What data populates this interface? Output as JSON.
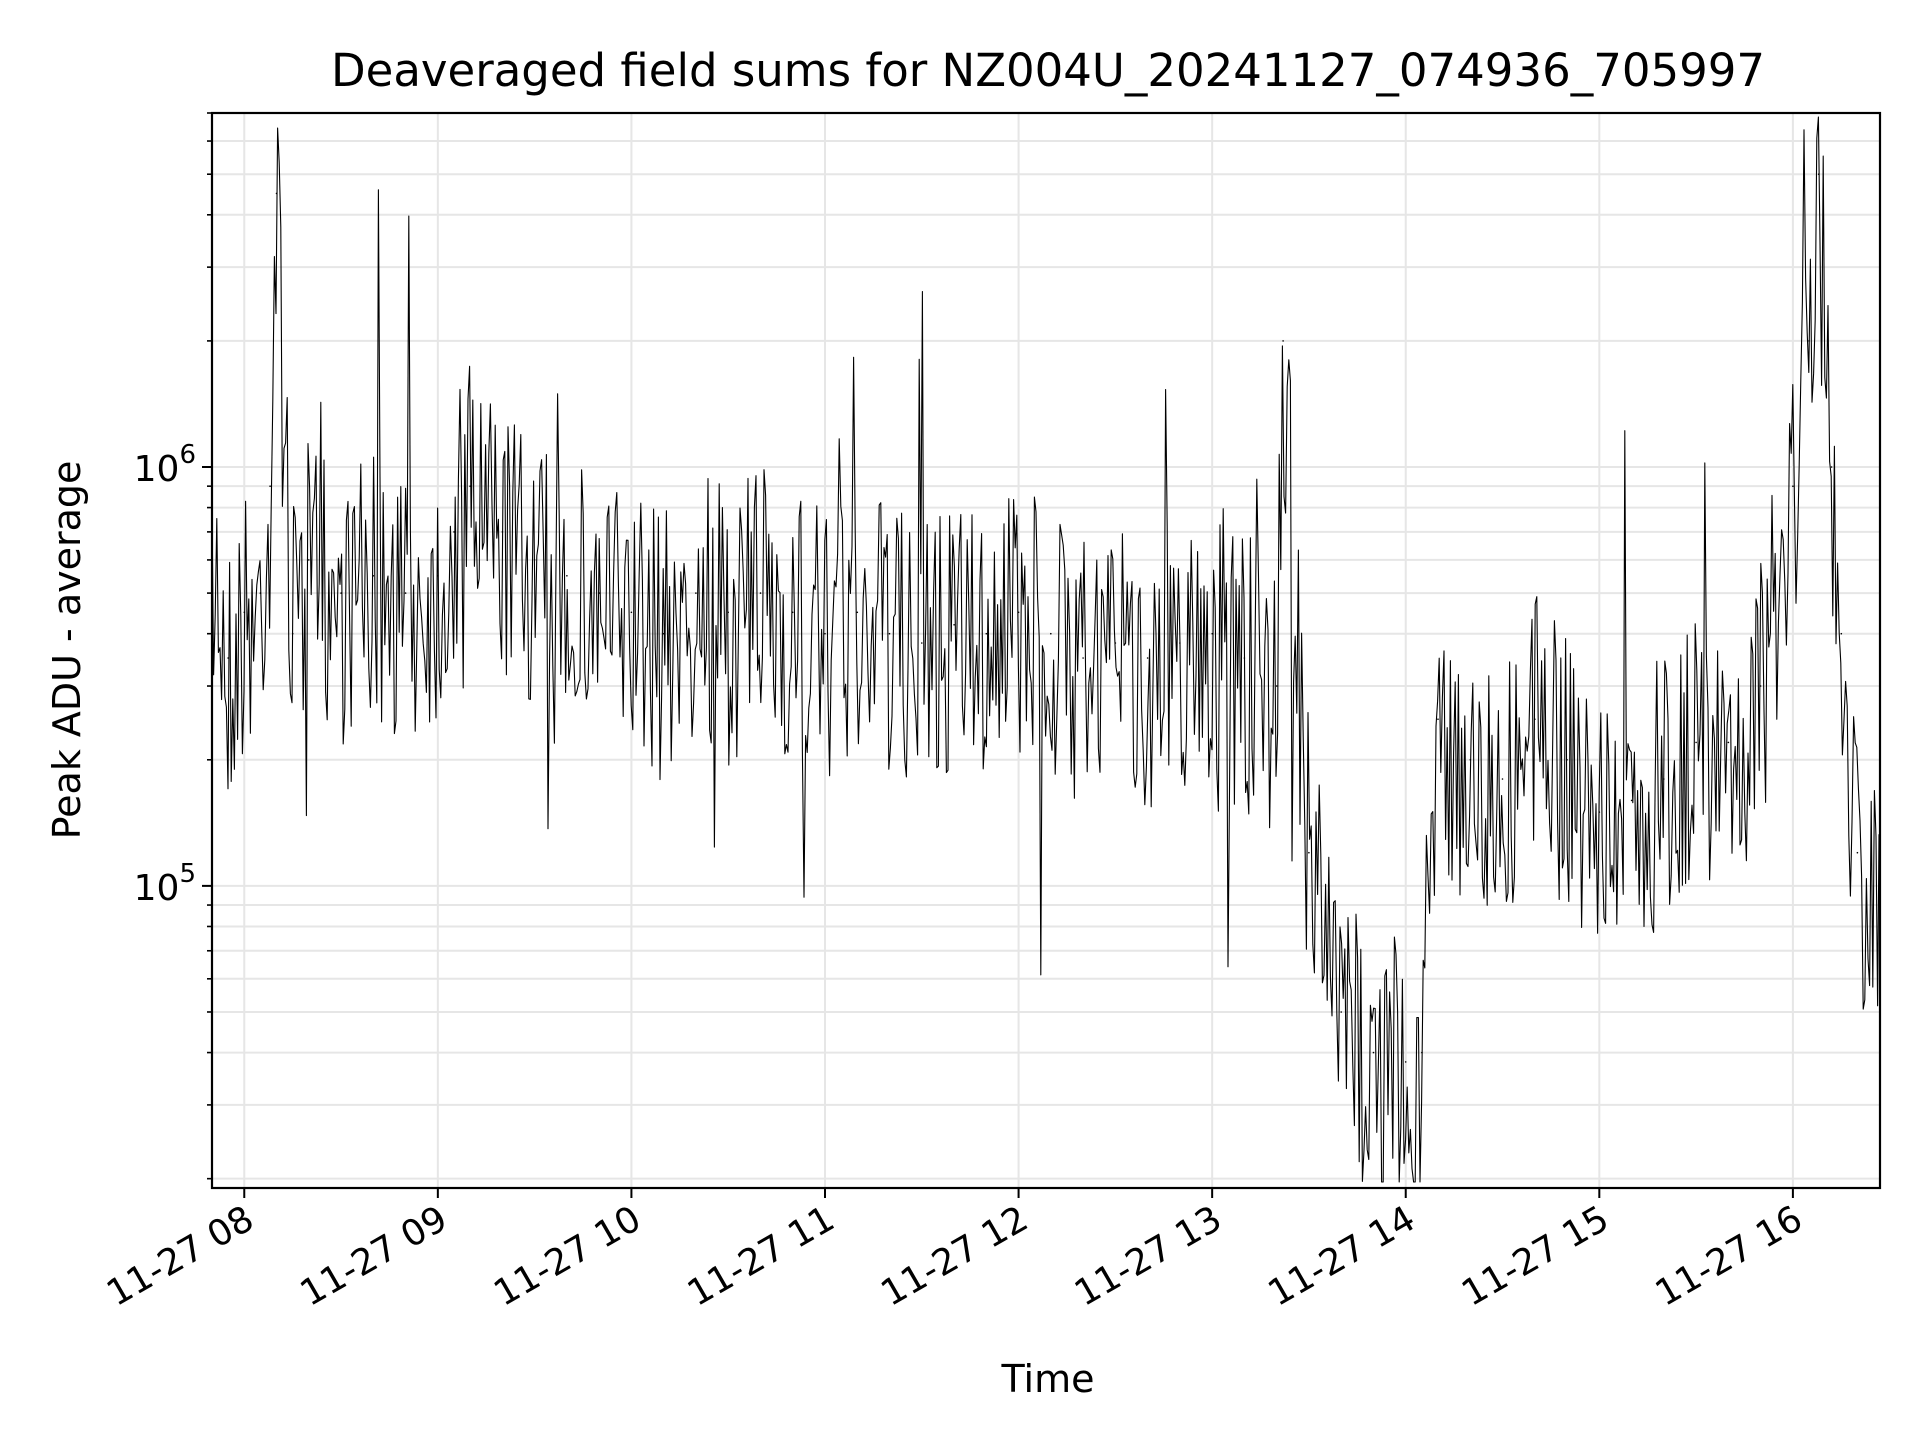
{
  "chart_data": {
    "type": "line",
    "title": "Deaveraged field sums for NZ004U_20241127_074936_705997",
    "xlabel": "Time",
    "ylabel": "Peak ADU - average",
    "yscale": "log",
    "xlim": [
      "2024-11-27T07:50",
      "2024-11-27T16:27"
    ],
    "ylim": [
      19000,
      7000000
    ],
    "grid": true,
    "line_color": "#000000",
    "grid_color": "#e6e6e6",
    "x_ticks": [
      {
        "label": "11-27 08",
        "value": "2024-11-27T08:00"
      },
      {
        "label": "11-27 09",
        "value": "2024-11-27T09:00"
      },
      {
        "label": "11-27 10",
        "value": "2024-11-27T10:00"
      },
      {
        "label": "11-27 11",
        "value": "2024-11-27T11:00"
      },
      {
        "label": "11-27 12",
        "value": "2024-11-27T12:00"
      },
      {
        "label": "11-27 13",
        "value": "2024-11-27T13:00"
      },
      {
        "label": "11-27 14",
        "value": "2024-11-27T14:00"
      },
      {
        "label": "11-27 15",
        "value": "2024-11-27T15:00"
      },
      {
        "label": "11-27 16",
        "value": "2024-11-27T16:00"
      }
    ],
    "y_ticks": [
      {
        "base": "10",
        "exp": "5",
        "value": 100000
      },
      {
        "base": "10",
        "exp": "6",
        "value": 1000000
      }
    ],
    "series": [
      {
        "x": [
          "2024-11-27T07:50",
          "2024-11-27T07:55",
          "2024-11-27T08:00",
          "2024-11-27T08:05",
          "2024-11-27T08:08",
          "2024-11-27T08:10",
          "2024-11-27T08:15",
          "2024-11-27T08:20",
          "2024-11-27T08:30",
          "2024-11-27T08:40",
          "2024-11-27T08:50",
          "2024-11-27T09:00",
          "2024-11-27T09:05",
          "2024-11-27T09:10",
          "2024-11-27T09:20",
          "2024-11-27T09:30",
          "2024-11-27T09:40",
          "2024-11-27T09:50",
          "2024-11-27T10:00",
          "2024-11-27T10:10",
          "2024-11-27T10:20",
          "2024-11-27T10:30",
          "2024-11-27T10:40",
          "2024-11-27T10:50",
          "2024-11-27T11:00",
          "2024-11-27T11:10",
          "2024-11-27T11:20",
          "2024-11-27T11:30",
          "2024-11-27T11:40",
          "2024-11-27T11:50",
          "2024-11-27T12:00",
          "2024-11-27T12:10",
          "2024-11-27T12:20",
          "2024-11-27T12:30",
          "2024-11-27T12:40",
          "2024-11-27T12:50",
          "2024-11-27T13:00",
          "2024-11-27T13:10",
          "2024-11-27T13:20",
          "2024-11-27T13:22",
          "2024-11-27T13:30",
          "2024-11-27T13:40",
          "2024-11-27T13:50",
          "2024-11-27T14:00",
          "2024-11-27T14:05",
          "2024-11-27T14:10",
          "2024-11-27T14:20",
          "2024-11-27T14:30",
          "2024-11-27T14:40",
          "2024-11-27T14:50",
          "2024-11-27T15:00",
          "2024-11-27T15:10",
          "2024-11-27T15:20",
          "2024-11-27T15:30",
          "2024-11-27T15:40",
          "2024-11-27T15:50",
          "2024-11-27T16:00",
          "2024-11-27T16:05",
          "2024-11-27T16:08",
          "2024-11-27T16:12",
          "2024-11-27T16:15",
          "2024-11-27T16:20",
          "2024-11-27T16:27"
        ],
        "y": [
          800000,
          350000,
          450000,
          500000,
          900000,
          4500000,
          400000,
          600000,
          500000,
          550000,
          500000,
          550000,
          700000,
          900000,
          700000,
          600000,
          550000,
          500000,
          450000,
          400000,
          500000,
          450000,
          500000,
          450000,
          400000,
          450000,
          400000,
          380000,
          420000,
          400000,
          450000,
          400000,
          350000,
          380000,
          350000,
          380000,
          400000,
          350000,
          300000,
          2000000,
          120000,
          50000,
          40000,
          38000,
          40000,
          250000,
          200000,
          180000,
          250000,
          200000,
          150000,
          160000,
          180000,
          220000,
          220000,
          300000,
          900000,
          2000000,
          5000000,
          1000000,
          400000,
          120000,
          90000
        ]
      }
    ]
  }
}
